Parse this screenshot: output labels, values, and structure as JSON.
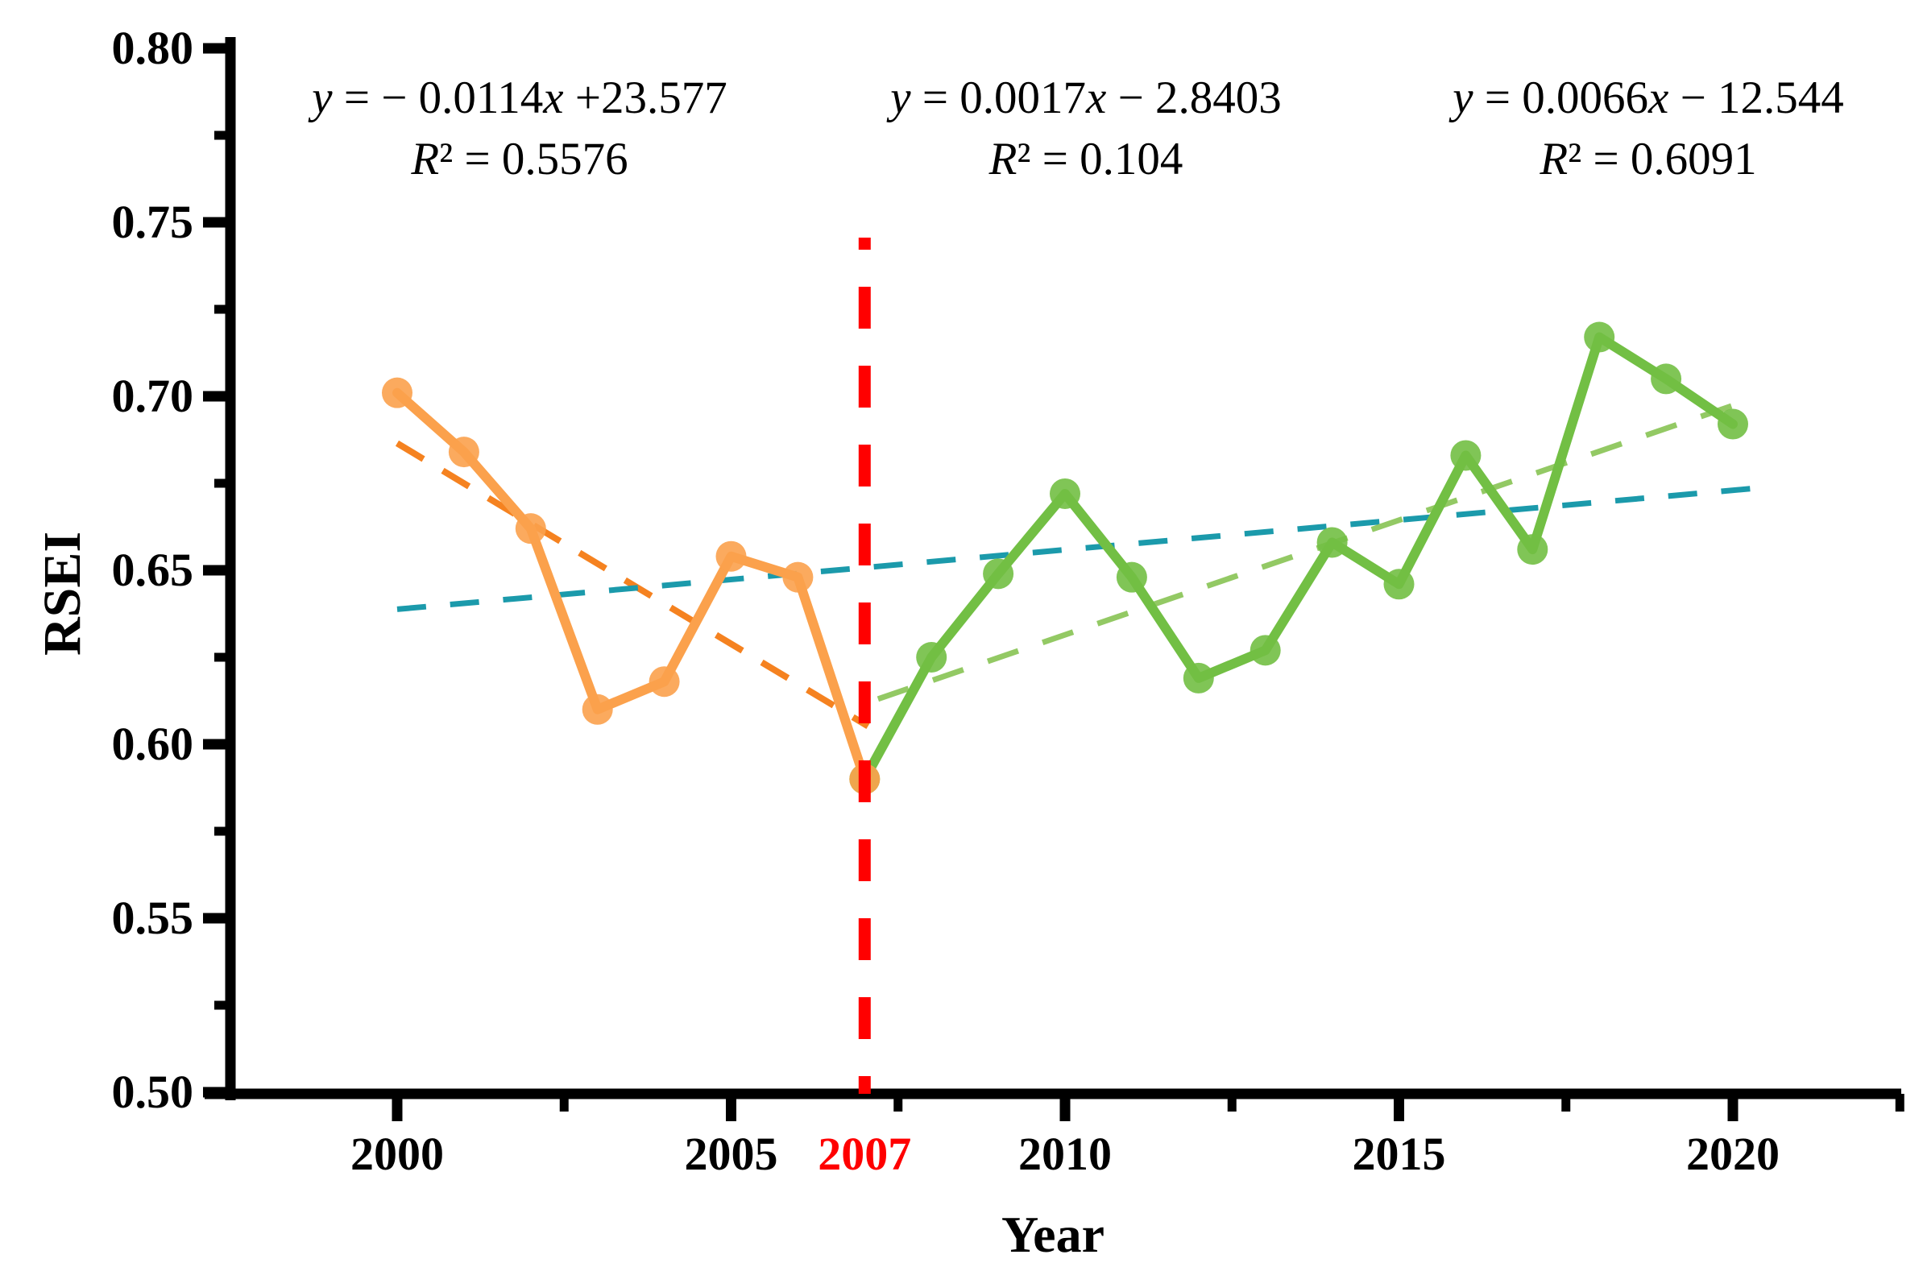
{
  "figure": {
    "background": "#FFFFFF",
    "text_color": "#000000",
    "y_axis": {
      "title": "RSEI",
      "ticks": [
        {
          "label": "0.80",
          "value": 0.8
        },
        {
          "label": "0.75",
          "value": 0.75
        },
        {
          "label": "0.70",
          "value": 0.7
        },
        {
          "label": "0.65",
          "value": 0.65
        },
        {
          "label": "0.60",
          "value": 0.6
        },
        {
          "label": "0.55",
          "value": 0.55
        },
        {
          "label": "0.50",
          "value": 0.5
        }
      ],
      "minor_ticks": [
        0.775,
        0.725,
        0.675,
        0.625,
        0.575,
        0.525
      ]
    },
    "x_axis": {
      "title": "Year",
      "ticks": [
        {
          "label": "2000",
          "value": 2000,
          "color": "#000000"
        },
        {
          "label": "2005",
          "value": 2005,
          "color": "#000000"
        },
        {
          "label": "2007",
          "value": 2007,
          "color": "#FF0000"
        },
        {
          "label": "2010",
          "value": 2010,
          "color": "#000000"
        },
        {
          "label": "2015",
          "value": 2015,
          "color": "#000000"
        },
        {
          "label": "2020",
          "value": 2020,
          "color": "#000000"
        }
      ],
      "minor_ticks": [
        2002.5,
        2007.5,
        2012.5,
        2017.5,
        2022.5
      ]
    },
    "equations": [
      {
        "line1": "y = − 0.0114x +23.577",
        "line2": "R² = 0.5576"
      },
      {
        "line1": "y = 0.0017x − 2.8403",
        "line2": "R² = 0.104"
      },
      {
        "line1": "y = 0.0066x − 12.544",
        "line2": "R² = 0.6091"
      }
    ]
  },
  "chart_data": {
    "type": "line",
    "title": "",
    "xlabel": "Year",
    "ylabel": "RSEI",
    "xlim": [
      1997.5,
      2022.5
    ],
    "ylim": [
      0.5,
      0.8
    ],
    "grid": false,
    "legend": "none",
    "series": [
      {
        "name": "rsei-2000-2007",
        "color": "#FBA14C",
        "marker": "circle",
        "x": [
          2000,
          2001,
          2002,
          2003,
          2004,
          2005,
          2006,
          2007
        ],
        "values": [
          0.701,
          0.684,
          0.662,
          0.61,
          0.618,
          0.654,
          0.648,
          0.59
        ]
      },
      {
        "name": "rsei-2007-2020",
        "color": "#72BF44",
        "marker": "circle",
        "x": [
          2007,
          2008,
          2009,
          2010,
          2011,
          2012,
          2013,
          2014,
          2015,
          2016,
          2017,
          2018,
          2019,
          2020
        ],
        "values": [
          0.59,
          0.625,
          0.649,
          0.672,
          0.648,
          0.619,
          0.627,
          0.658,
          0.646,
          0.683,
          0.656,
          0.717,
          0.705,
          0.692
        ]
      }
    ],
    "trendlines": [
      {
        "name": "trend-2000-2007",
        "style": "dashed",
        "color": "#F58220",
        "x": [
          2000.0,
          2007.05
        ],
        "values": [
          0.6865,
          0.6052
        ]
      },
      {
        "name": "trend-2000-2020",
        "style": "dashed",
        "color": "#1B9AAB",
        "x": [
          2000.0,
          2020.3
        ],
        "values": [
          0.6388,
          0.6735
        ]
      },
      {
        "name": "trend-2007-2020",
        "style": "dashed",
        "color": "#93C964",
        "x": [
          2007.2,
          2020.25
        ],
        "values": [
          0.613,
          0.699
        ]
      }
    ],
    "vline": {
      "x": 2007,
      "color": "#FF0000",
      "label": "2007"
    }
  }
}
